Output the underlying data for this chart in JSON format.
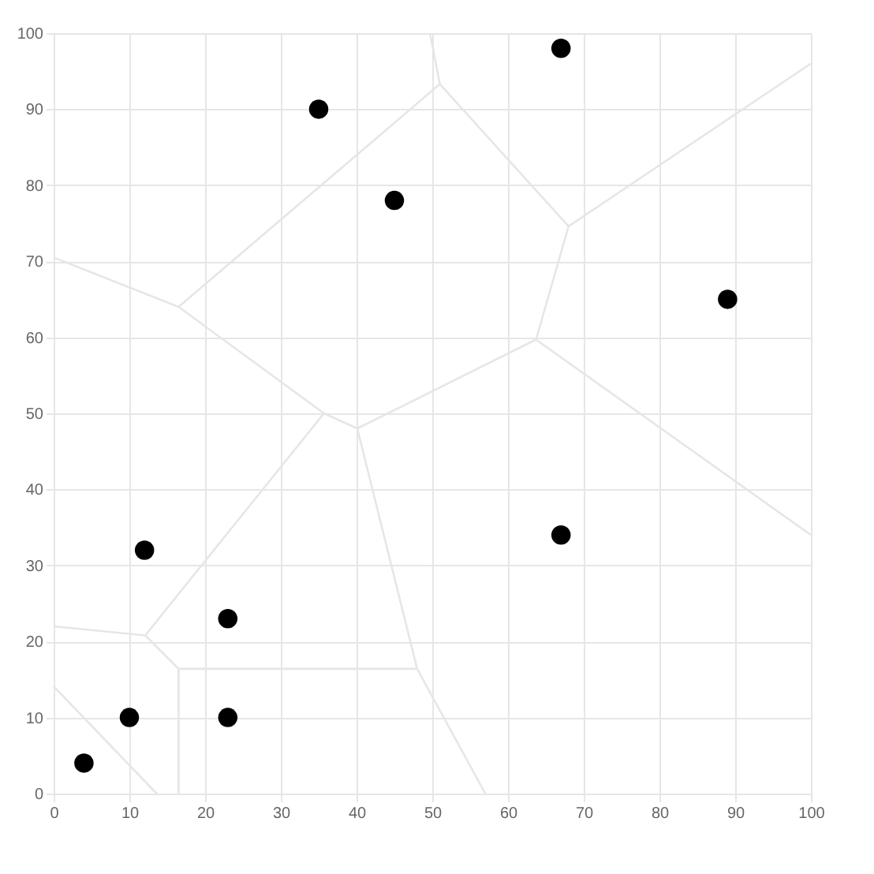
{
  "chart_data": {
    "type": "scatter",
    "grid": true,
    "xlim": [
      0,
      100
    ],
    "ylim": [
      0,
      100
    ],
    "xticks": [
      0,
      10,
      20,
      30,
      40,
      50,
      60,
      70,
      80,
      90,
      100
    ],
    "yticks": [
      0,
      10,
      20,
      30,
      40,
      50,
      60,
      70,
      80,
      90,
      100
    ],
    "series": [
      {
        "type": "line",
        "color": "#e6e6e6",
        "x": [
          0,
          16.5,
          51,
          49.7
        ],
        "values": [
          70.5,
          64,
          93.3,
          100
        ]
      },
      {
        "type": "line",
        "color": "#e6e6e6",
        "x": [
          16.5,
          35.7,
          40.1,
          63.7,
          68,
          51
        ],
        "values": [
          64,
          50,
          48,
          59.7,
          74.6,
          93.3
        ]
      },
      {
        "type": "line",
        "color": "#e6e6e6",
        "x": [
          68,
          100
        ],
        "values": [
          74.6,
          96
        ]
      },
      {
        "type": "line",
        "color": "#e6e6e6",
        "x": [
          63.7,
          100
        ],
        "values": [
          59.7,
          34
        ]
      },
      {
        "type": "line",
        "color": "#e6e6e6",
        "x": [
          35.7,
          12.1,
          0
        ],
        "values": [
          50,
          20.8,
          22
        ]
      },
      {
        "type": "line",
        "color": "#e6e6e6",
        "x": [
          12.1,
          16.5,
          16.5
        ],
        "values": [
          20.8,
          16.4,
          0
        ]
      },
      {
        "type": "line",
        "color": "#e6e6e6",
        "x": [
          16.5,
          48,
          57
        ],
        "values": [
          16.4,
          16.4,
          0
        ]
      },
      {
        "type": "line",
        "color": "#e6e6e6",
        "x": [
          40.1,
          48
        ],
        "values": [
          48,
          16.4
        ]
      },
      {
        "type": "line",
        "color": "#e6e6e6",
        "x": [
          0,
          13.6
        ],
        "values": [
          14.1,
          0
        ]
      },
      {
        "marker": "circle",
        "color": "#000000",
        "x": [
          4,
          10,
          12,
          23,
          23,
          35,
          45,
          67,
          89,
          67
        ],
        "values": [
          4,
          10,
          32,
          23,
          10,
          90,
          78,
          98,
          65,
          34
        ]
      }
    ]
  }
}
